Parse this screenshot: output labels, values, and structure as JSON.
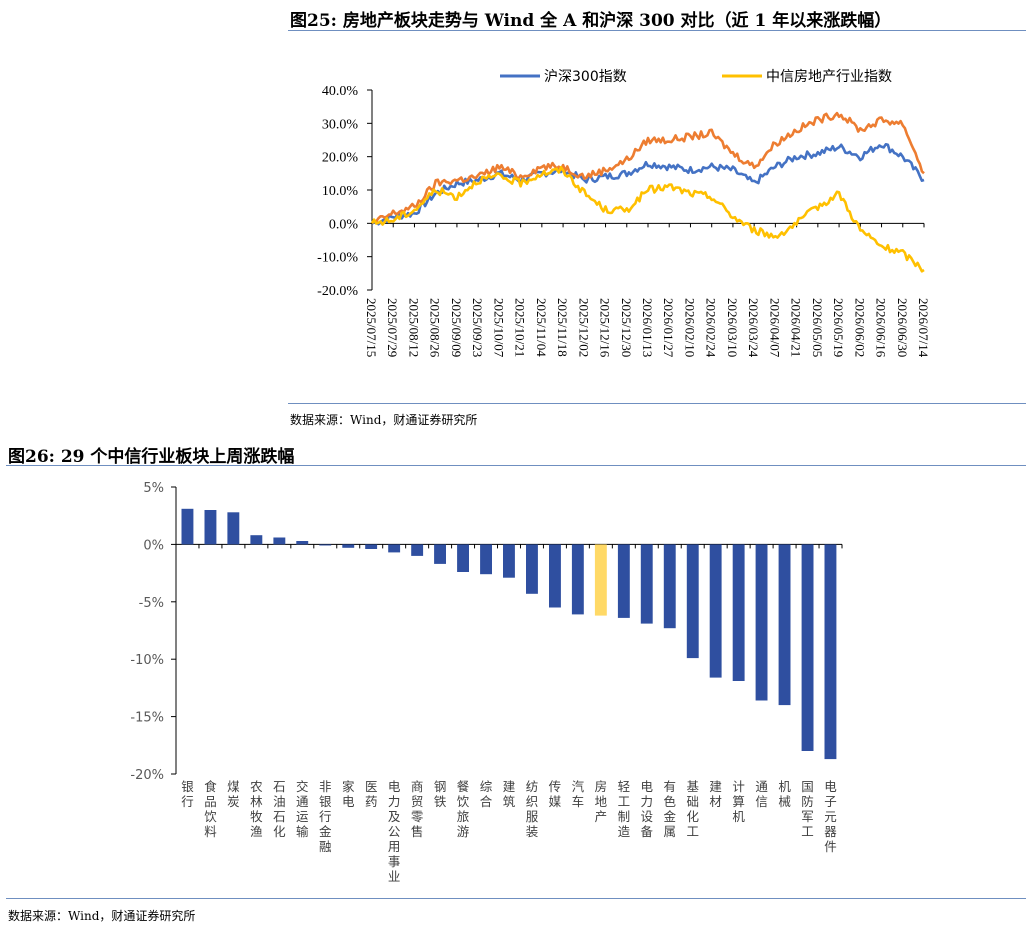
{
  "figure1": {
    "title": "图25: 房地产板块走势与 Wind 全 A 和沪深 300 对比（近 1 年以来涨跌幅）",
    "source": "数据来源：Wind，财通证券研究所"
  },
  "figure2": {
    "title": "图26: 29 个中信行业板块上周涨跌幅",
    "source": "数据来源：Wind，财通证券研究所"
  },
  "chart_data": [
    {
      "type": "line",
      "title": "",
      "ylim": [
        -20,
        40
      ],
      "yticks": [
        "40.0%",
        "30.0%",
        "20.0%",
        "10.0%",
        "0.0%",
        "-10.0%",
        "-20.0%"
      ],
      "yunit": "%",
      "xticks": [
        "2025/07/15",
        "2025/07/29",
        "2025/08/12",
        "2025/08/26",
        "2025/09/09",
        "2025/09/23",
        "2025/10/07",
        "2025/10/21",
        "2025/11/04",
        "2025/11/18",
        "2025/12/02",
        "2025/12/16",
        "2025/12/30",
        "2026/01/13",
        "2026/01/27",
        "2026/02/10",
        "2026/02/24",
        "2026/03/10",
        "2026/03/24",
        "2026/04/07",
        "2026/04/21",
        "2026/05/05",
        "2026/05/19",
        "2026/06/02",
        "2026/06/16",
        "2026/06/30",
        "2026/07/14"
      ],
      "legend_position": "top",
      "grid": false,
      "series": [
        {
          "name": "沪深300指数",
          "color": "#4472c4",
          "values": [
            0,
            2,
            3,
            9,
            12,
            13,
            15,
            13,
            15,
            16,
            13,
            14,
            15,
            18,
            17,
            16,
            17,
            16,
            12,
            17,
            20,
            21,
            23,
            20,
            24,
            20,
            13
          ]
        },
        {
          "name": "",
          "color": "#ed7d31",
          "values": [
            0,
            3,
            5,
            12,
            13,
            14,
            17,
            14,
            17,
            17,
            14,
            16,
            19,
            25,
            25,
            26,
            27,
            21,
            17,
            24,
            28,
            31,
            33,
            28,
            31,
            30,
            15
          ]
        },
        {
          "name": "中信房地产行业指数",
          "color": "#ffc000",
          "values": [
            0,
            1,
            4,
            10,
            8,
            13,
            14,
            12,
            15,
            16,
            9,
            4,
            4,
            10,
            11,
            9,
            8,
            2,
            -2,
            -4,
            0,
            5,
            9,
            -2,
            -7,
            -9,
            -14
          ]
        }
      ]
    },
    {
      "type": "bar",
      "title": "",
      "ylim": [
        -20,
        5
      ],
      "yticks": [
        "5%",
        "0%",
        "-5%",
        "-10%",
        "-15%",
        "-20%"
      ],
      "yunit": "%",
      "grid": false,
      "bar_color": "#2f4fa0",
      "highlight_color": "#ffd966",
      "highlight_category": "房地产",
      "categories": [
        "银行",
        "食品饮料",
        "煤炭",
        "农林牧渔",
        "石油石化",
        "交通运输",
        "非银行金融",
        "家电",
        "医药",
        "电力及公用事业",
        "商贸零售",
        "钢铁",
        "餐饮旅游",
        "综合",
        "建筑",
        "纺织服装",
        "传媒",
        "汽车",
        "房地产",
        "轻工制造",
        "电力设备",
        "有色金属",
        "基础化工",
        "建材",
        "计算机",
        "通信",
        "机械",
        "国防军工",
        "电子元器件"
      ],
      "values": [
        3.1,
        3.0,
        2.8,
        0.8,
        0.6,
        0.3,
        -0.1,
        -0.3,
        -0.4,
        -0.7,
        -1.0,
        -1.7,
        -2.4,
        -2.6,
        -2.9,
        -4.3,
        -5.5,
        -6.1,
        -6.2,
        -6.4,
        -6.9,
        -7.3,
        -9.9,
        -11.6,
        -11.9,
        -13.6,
        -14.0,
        -18.0,
        -18.7
      ]
    }
  ]
}
